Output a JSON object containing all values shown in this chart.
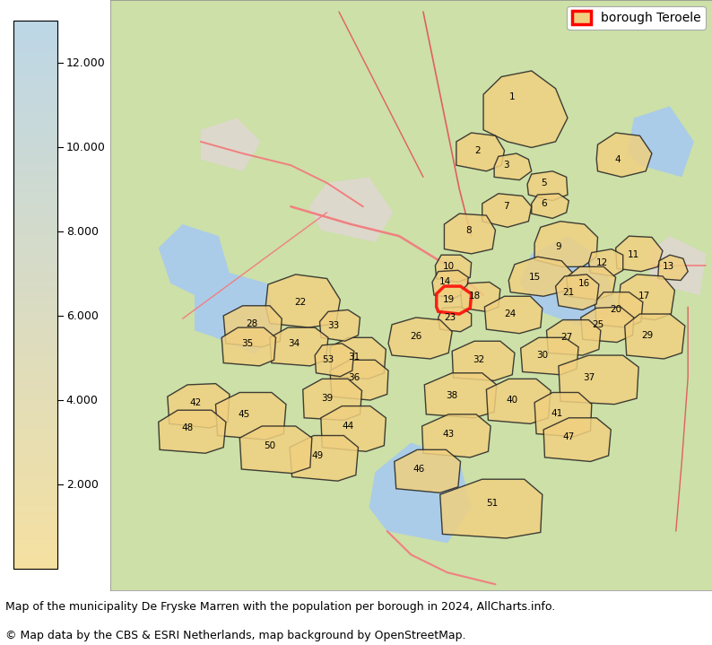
{
  "caption_line1": "Map of the municipality De Fryske Marren with the population per borough in 2024, AllCharts.info.",
  "caption_line2": "© Map data by the CBS & ESRI Netherlands, map background by OpenStreetMap.",
  "legend_label": "borough Teroele",
  "legend_color": "#ff0000",
  "colorbar_ticks": [
    2000,
    4000,
    6000,
    8000,
    10000,
    12000
  ],
  "colorbar_tick_labels": [
    "2.000",
    "4.000",
    "6.000",
    "8.000",
    "10.000",
    "12.000"
  ],
  "colorbar_top_color": "#bdd7e7",
  "colorbar_bottom_color": "#f5e0a0",
  "borough_fill_color": "#f0d080",
  "borough_fill_alpha": 0.85,
  "borough_edge_color": "#222222",
  "borough_edge_width": 1.0,
  "highlighted_borough_edge_color": "#ff0000",
  "highlighted_borough_edge_width": 2.5,
  "water_color": "#aacce8",
  "land_color": "#d8ecc0",
  "road_color": "#f07070",
  "road_minor_color": "#f0b040",
  "urban_color": "#e8e0d8",
  "figure_width": 7.94,
  "figure_height": 7.19,
  "caption_fontsize": 9,
  "legend_fontsize": 10,
  "colorbar_fontsize": 9,
  "borough_label_fontsize": 7.5,
  "map_bg": "#cce0a8",
  "map_water_bg": "#b0d0e8"
}
